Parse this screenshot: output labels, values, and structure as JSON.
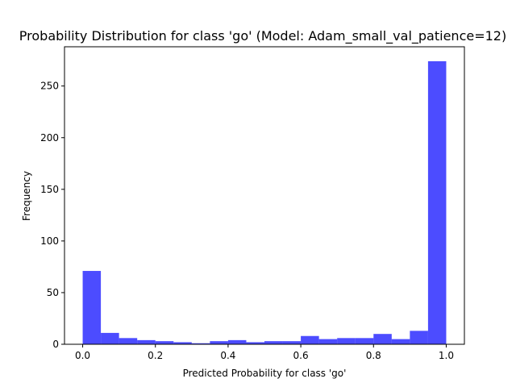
{
  "chart_data": {
    "type": "bar",
    "title": "Probability Distribution for class 'go' (Model: Adam_small_val_patience=12)",
    "xlabel": "Predicted Probability for class 'go'",
    "ylabel": "Frequency",
    "xlim": [
      -0.05,
      1.05
    ],
    "ylim": [
      0,
      288
    ],
    "xticks": [
      0.0,
      0.2,
      0.4,
      0.6,
      0.8,
      1.0
    ],
    "xtick_labels": [
      "0.0",
      "0.2",
      "0.4",
      "0.6",
      "0.8",
      "1.0"
    ],
    "yticks": [
      0,
      50,
      100,
      150,
      200,
      250
    ],
    "ytick_labels": [
      "0",
      "50",
      "100",
      "150",
      "200",
      "250"
    ],
    "grid": false,
    "bar_color": "#0000ff",
    "bar_opacity": 0.7,
    "bin_edges": [
      0.0,
      0.05,
      0.1,
      0.15,
      0.2,
      0.25,
      0.3,
      0.35,
      0.4,
      0.45,
      0.5,
      0.55,
      0.6,
      0.65,
      0.7,
      0.75,
      0.8,
      0.85,
      0.9,
      0.95,
      1.0
    ],
    "values": [
      71,
      11,
      6,
      4,
      3,
      2,
      1,
      3,
      4,
      2,
      3,
      3,
      8,
      5,
      6,
      6,
      10,
      5,
      13,
      274
    ]
  }
}
